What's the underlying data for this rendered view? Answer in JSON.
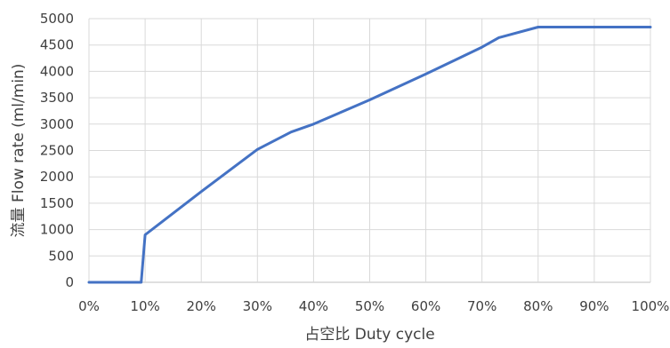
{
  "chart_data": {
    "type": "line",
    "xlabel": "占空比 Duty cycle",
    "ylabel": "流量 Flow rate (ml/min)",
    "xlim": [
      0,
      100
    ],
    "ylim": [
      0,
      5000
    ],
    "x_ticks": [
      "0%",
      "10%",
      "20%",
      "30%",
      "40%",
      "50%",
      "60%",
      "70%",
      "80%",
      "90%",
      "100%"
    ],
    "x_tick_values": [
      0,
      10,
      20,
      30,
      40,
      50,
      60,
      70,
      80,
      90,
      100
    ],
    "y_ticks": [
      "0",
      "500",
      "1000",
      "1500",
      "2000",
      "2500",
      "3000",
      "3500",
      "4000",
      "4500",
      "5000"
    ],
    "y_tick_values": [
      0,
      500,
      1000,
      1500,
      2000,
      2500,
      3000,
      3500,
      4000,
      4500,
      5000
    ],
    "grid": true,
    "legend": "none",
    "series": [
      {
        "color": "#4472C4",
        "x": [
          0,
          9,
          9.3,
          10,
          20,
          30,
          36,
          40,
          50,
          60,
          70,
          73,
          80,
          90,
          100
        ],
        "y": [
          0,
          0,
          0,
          900,
          1720,
          2520,
          2850,
          3000,
          3460,
          3950,
          4460,
          4640,
          4840,
          4840,
          4840
        ]
      }
    ]
  }
}
